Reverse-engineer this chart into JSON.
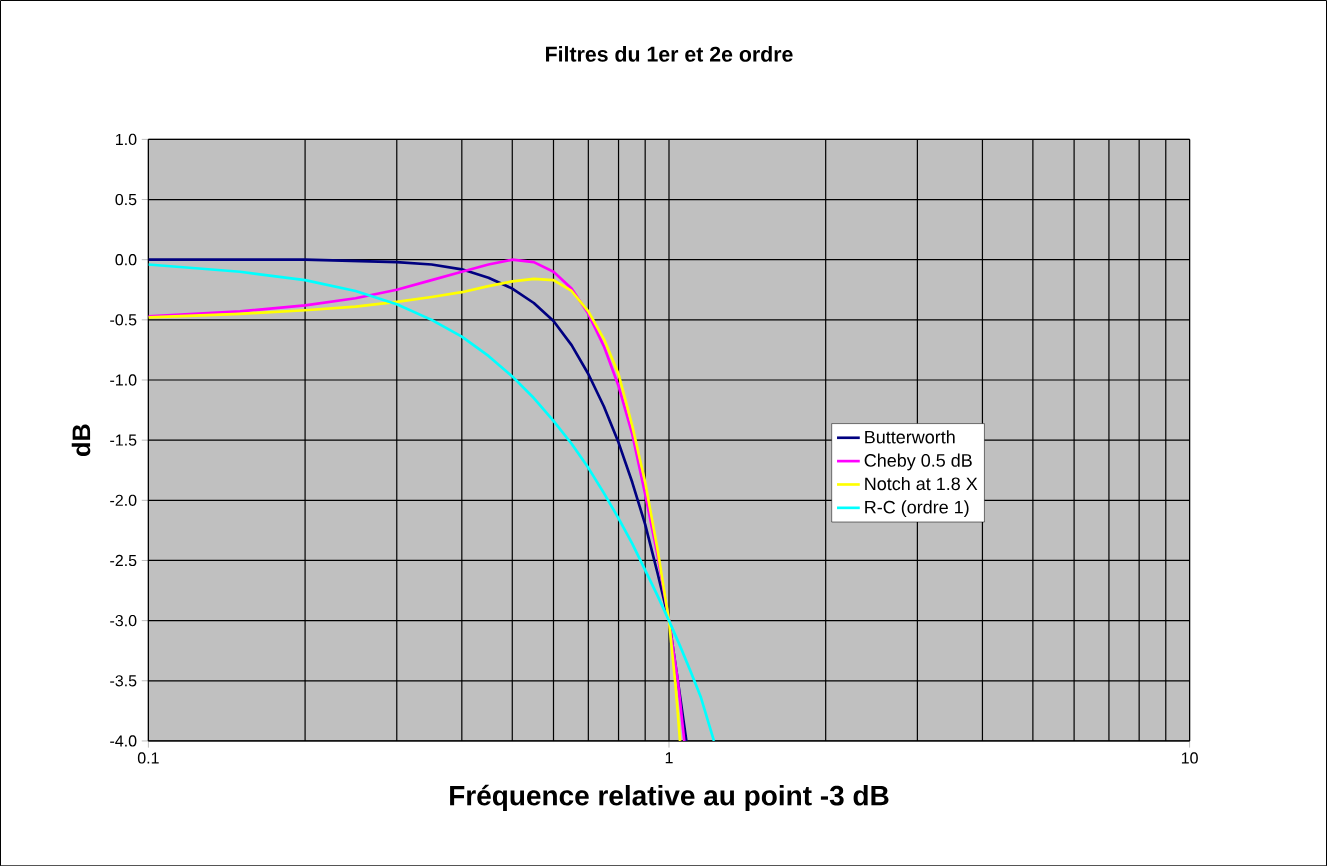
{
  "chart_data": {
    "type": "line",
    "title": "Filtres du 1er et 2e ordre",
    "xlabel": "Fréquence relative au point -3 dB",
    "ylabel": "dB",
    "log": "x",
    "grid": true,
    "legend": "right",
    "marker": "none",
    "line_style": "solid",
    "xlim": [
      0.1,
      10
    ],
    "xticks": [
      0.1,
      1,
      10
    ],
    "ylim": [
      -4.0,
      1.0
    ],
    "yticks": [
      {
        "value": 1.0,
        "label": "1.0"
      },
      {
        "value": 0.5,
        "label": "0.5"
      },
      {
        "value": 0.0,
        "label": "0.0"
      },
      {
        "value": -0.5,
        "label": "-0.5"
      },
      {
        "value": -1.0,
        "label": "-1.0"
      },
      {
        "value": -1.5,
        "label": "-1.5"
      },
      {
        "value": -2.0,
        "label": "-2.0"
      },
      {
        "value": -2.5,
        "label": "-2.5"
      },
      {
        "value": -3.0,
        "label": "-3.0"
      },
      {
        "value": -3.5,
        "label": "-3.5"
      },
      {
        "value": -4.0,
        "label": "-4.0"
      }
    ],
    "series": [
      {
        "name": "Butterworth",
        "color": "#000080",
        "x": [
          0.1,
          0.2,
          0.3,
          0.35,
          0.4,
          0.45,
          0.5,
          0.55,
          0.6,
          0.65,
          0.7,
          0.75,
          0.8,
          0.85,
          0.9,
          0.95,
          1.0,
          1.04,
          1.08
        ],
        "values": [
          0.0,
          0.0,
          -0.02,
          -0.04,
          -0.08,
          -0.15,
          -0.24,
          -0.36,
          -0.51,
          -0.71,
          -0.95,
          -1.22,
          -1.52,
          -1.85,
          -2.2,
          -2.6,
          -3.0,
          -3.5,
          -4.0
        ]
      },
      {
        "name": "Cheby  0.5 dB",
        "color": "#ff00ff",
        "x": [
          0.1,
          0.15,
          0.2,
          0.25,
          0.3,
          0.35,
          0.4,
          0.45,
          0.5,
          0.55,
          0.6,
          0.65,
          0.7,
          0.75,
          0.8,
          0.85,
          0.9,
          0.95,
          1.0,
          1.04,
          1.07
        ],
        "values": [
          -0.47,
          -0.43,
          -0.38,
          -0.32,
          -0.25,
          -0.17,
          -0.1,
          -0.04,
          0.0,
          -0.02,
          -0.1,
          -0.24,
          -0.45,
          -0.72,
          -1.05,
          -1.45,
          -1.95,
          -2.45,
          -3.0,
          -3.5,
          -4.0
        ]
      },
      {
        "name": "Notch at 1.8 X",
        "color": "#ffff00",
        "x": [
          0.1,
          0.15,
          0.2,
          0.25,
          0.3,
          0.35,
          0.4,
          0.45,
          0.5,
          0.55,
          0.6,
          0.65,
          0.7,
          0.75,
          0.8,
          0.85,
          0.9,
          0.95,
          1.0,
          1.03,
          1.05
        ],
        "values": [
          -0.48,
          -0.45,
          -0.42,
          -0.39,
          -0.35,
          -0.31,
          -0.27,
          -0.22,
          -0.18,
          -0.16,
          -0.17,
          -0.26,
          -0.43,
          -0.66,
          -0.95,
          -1.38,
          -1.85,
          -2.4,
          -3.0,
          -3.55,
          -4.0
        ]
      },
      {
        "name": "R-C (ordre 1)",
        "color": "#00ffff",
        "x": [
          0.1,
          0.15,
          0.2,
          0.25,
          0.3,
          0.35,
          0.4,
          0.45,
          0.5,
          0.55,
          0.6,
          0.65,
          0.7,
          0.75,
          0.8,
          0.85,
          0.9,
          0.95,
          1.0,
          1.05,
          1.1,
          1.15,
          1.22
        ],
        "values": [
          -0.04,
          -0.1,
          -0.17,
          -0.26,
          -0.37,
          -0.5,
          -0.64,
          -0.8,
          -0.97,
          -1.15,
          -1.34,
          -1.53,
          -1.73,
          -1.94,
          -2.15,
          -2.36,
          -2.58,
          -2.79,
          -3.0,
          -3.21,
          -3.42,
          -3.63,
          -4.0
        ]
      }
    ]
  }
}
